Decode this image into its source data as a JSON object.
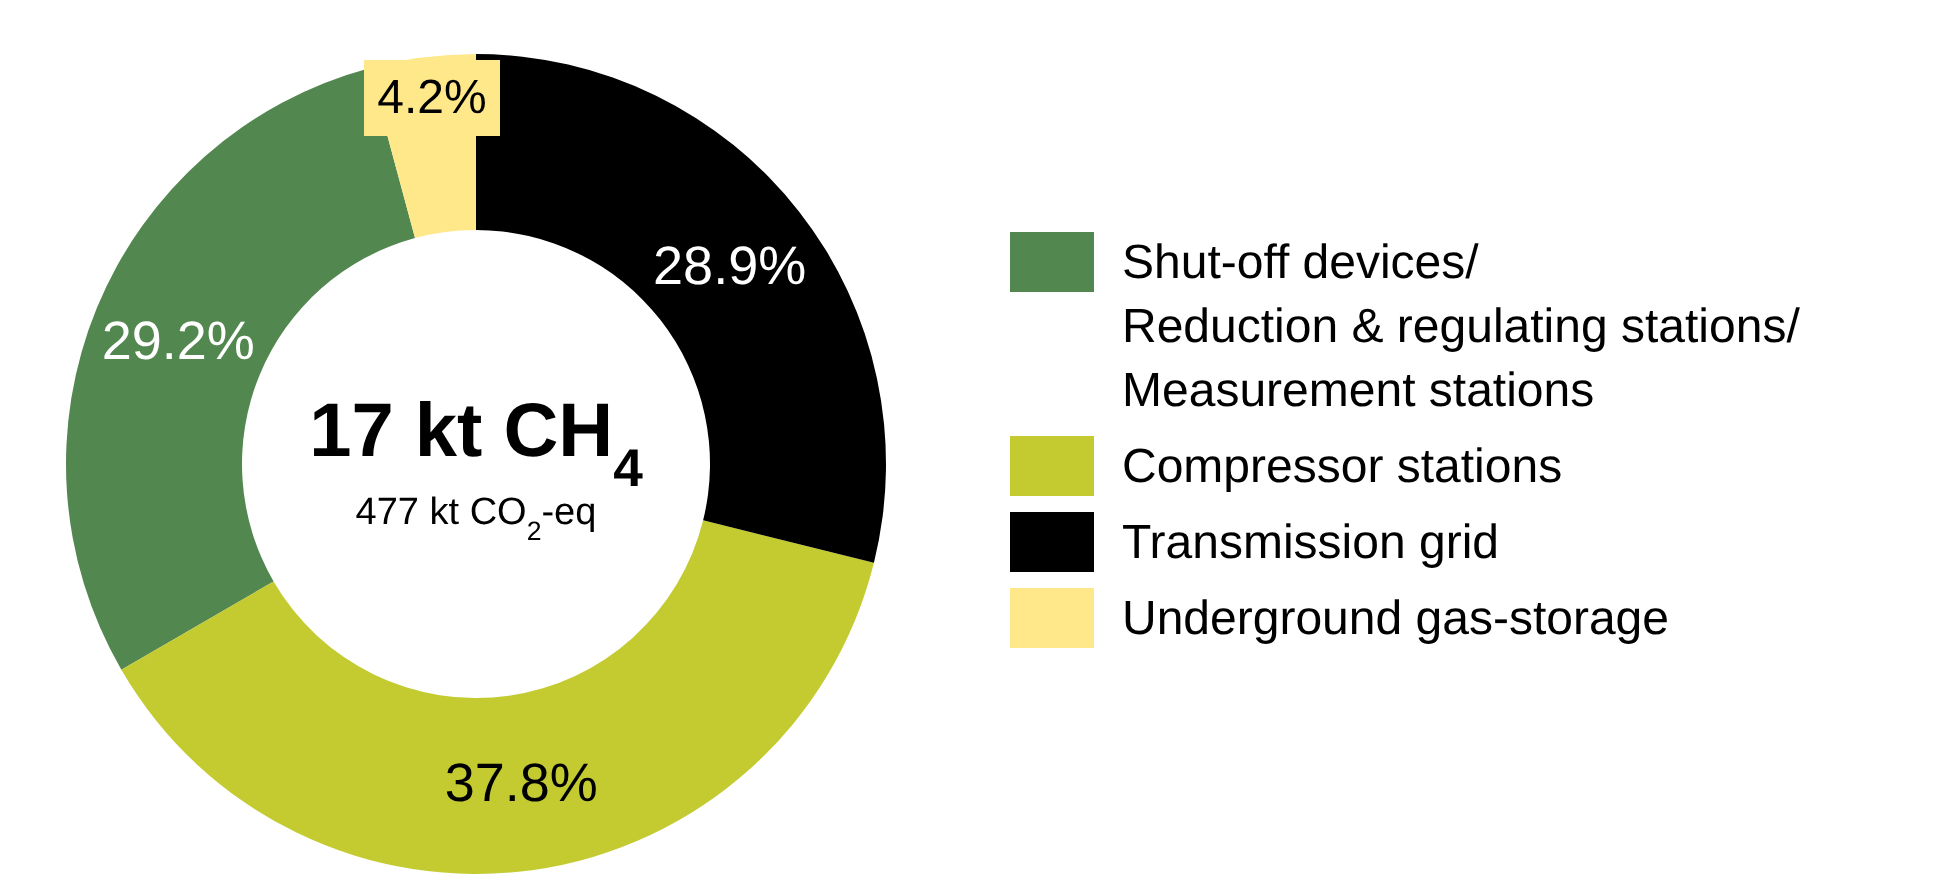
{
  "chart_data": {
    "type": "donut",
    "categories": [
      "Shut-off devices/\nReduction & regulating stations/\nMeasurement stations",
      "Compressor stations",
      "Transmission grid",
      "Underground gas-storage"
    ],
    "values": [
      29.2,
      37.8,
      28.9,
      4.2
    ],
    "colors": [
      "#538750",
      "#c3cb31",
      "#000000",
      "#ffe88a"
    ],
    "value_labels": [
      "29.2%",
      "37.8%",
      "28.9%",
      "4.2%"
    ],
    "annotations": [
      "17 kt CH$_{4}$",
      "477 kt CO$_{2}$-eq"
    ],
    "legend": "right"
  }
}
